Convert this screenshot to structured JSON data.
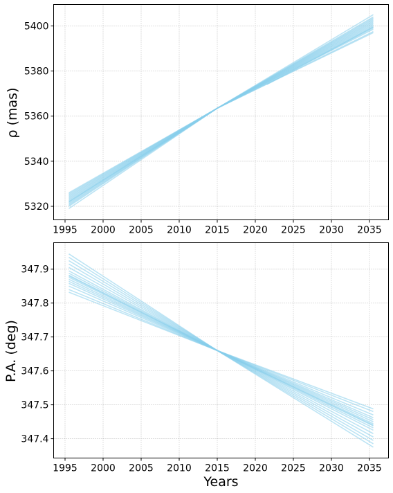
{
  "chart_data": [
    {
      "type": "line",
      "title": "",
      "xlabel": "",
      "ylabel": "ρ (mas)",
      "xlim": [
        1993.5,
        2037.5
      ],
      "ylim": [
        5314,
        5409.5
      ],
      "xticks": [
        1995,
        2000,
        2005,
        2010,
        2015,
        2020,
        2025,
        2030,
        2035
      ],
      "yticks": [
        5320,
        5340,
        5360,
        5380,
        5400
      ],
      "grid": true,
      "line_color": "#87ceeb",
      "pivot": {
        "x": 2015,
        "y": 5363.5
      },
      "series": [
        {
          "x": [
            1995.5,
            2035.5
          ],
          "y": [
            5319.0,
            5405.0
          ]
        },
        {
          "x": [
            1995.5,
            2035.5
          ],
          "y": [
            5320.0,
            5404.0
          ]
        },
        {
          "x": [
            1995.5,
            2035.5
          ],
          "y": [
            5321.0,
            5403.0
          ]
        },
        {
          "x": [
            1995.5,
            2035.5
          ],
          "y": [
            5321.5,
            5402.5
          ]
        },
        {
          "x": [
            1995.5,
            2035.5
          ],
          "y": [
            5322.0,
            5402.0
          ]
        },
        {
          "x": [
            1995.5,
            2035.5
          ],
          "y": [
            5322.5,
            5401.5
          ]
        },
        {
          "x": [
            1995.5,
            2035.5
          ],
          "y": [
            5323.0,
            5401.0
          ]
        },
        {
          "x": [
            1995.5,
            2035.5
          ],
          "y": [
            5323.5,
            5400.5
          ]
        },
        {
          "x": [
            1995.5,
            2035.5
          ],
          "y": [
            5324.0,
            5400.0
          ]
        },
        {
          "x": [
            1995.5,
            2035.5
          ],
          "y": [
            5324.5,
            5399.5
          ]
        },
        {
          "x": [
            1995.5,
            2035.5
          ],
          "y": [
            5325.0,
            5398.5
          ]
        },
        {
          "x": [
            1995.5,
            2035.5
          ],
          "y": [
            5325.5,
            5397.5
          ]
        },
        {
          "x": [
            1995.5,
            2035.5
          ],
          "y": [
            5326.0,
            5397.0
          ]
        },
        {
          "x": [
            1995.5,
            2035.5
          ],
          "y": [
            5320.5,
            5403.5
          ]
        },
        {
          "x": [
            1995.5,
            2035.5
          ],
          "y": [
            5322.0,
            5399.0
          ]
        },
        {
          "x": [
            2021.5,
            2035.5
          ],
          "y": [
            5374.0,
            5399.5
          ]
        }
      ]
    },
    {
      "type": "line",
      "title": "",
      "xlabel": "Years",
      "ylabel": "P.A. (deg)",
      "xlim": [
        1993.5,
        2037.5
      ],
      "ylim": [
        347.343,
        347.978
      ],
      "xticks": [
        1995,
        2000,
        2005,
        2010,
        2015,
        2020,
        2025,
        2030,
        2035
      ],
      "yticks": [
        347.4,
        347.5,
        347.6,
        347.7,
        347.8,
        347.9
      ],
      "grid": true,
      "line_color": "#87ceeb",
      "pivot": {
        "x": 2015,
        "y": 347.66
      },
      "series": [
        {
          "x": [
            1995.5,
            2035.5
          ],
          "y": [
            347.945,
            347.375
          ]
        },
        {
          "x": [
            1995.5,
            2035.5
          ],
          "y": [
            347.935,
            347.385
          ]
        },
        {
          "x": [
            1995.5,
            2035.5
          ],
          "y": [
            347.915,
            347.405
          ]
        },
        {
          "x": [
            1995.5,
            2035.5
          ],
          "y": [
            347.905,
            347.415
          ]
        },
        {
          "x": [
            1995.5,
            2035.5
          ],
          "y": [
            347.895,
            347.425
          ]
        },
        {
          "x": [
            1995.5,
            2035.5
          ],
          "y": [
            347.888,
            347.432
          ]
        },
        {
          "x": [
            1995.5,
            2035.5
          ],
          "y": [
            347.882,
            347.438
          ]
        },
        {
          "x": [
            1995.5,
            2035.5
          ],
          "y": [
            347.876,
            347.444
          ]
        },
        {
          "x": [
            1995.5,
            2035.5
          ],
          "y": [
            347.87,
            347.45
          ]
        },
        {
          "x": [
            1995.5,
            2035.5
          ],
          "y": [
            347.864,
            347.456
          ]
        },
        {
          "x": [
            1995.5,
            2035.5
          ],
          "y": [
            347.858,
            347.462
          ]
        },
        {
          "x": [
            1995.5,
            2035.5
          ],
          "y": [
            347.85,
            347.47
          ]
        },
        {
          "x": [
            1995.5,
            2035.5
          ],
          "y": [
            347.84,
            347.48
          ]
        },
        {
          "x": [
            1995.5,
            2035.5
          ],
          "y": [
            347.832,
            347.488
          ]
        },
        {
          "x": [
            1995.5,
            2035.5
          ],
          "y": [
            347.925,
            347.395
          ]
        },
        {
          "x": [
            1995.5,
            2035.5
          ],
          "y": [
            347.88,
            347.44
          ]
        }
      ]
    }
  ]
}
